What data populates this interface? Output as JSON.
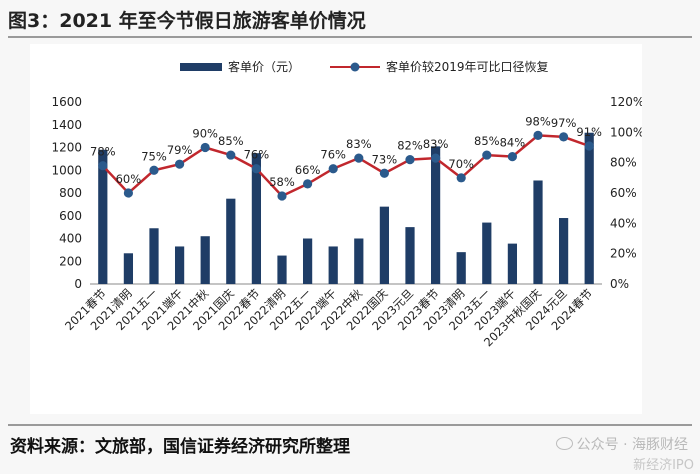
{
  "title": "图3：2021 年至今节假日旅游客单价情况",
  "source": "资料来源：文旅部，国信证券经济研究所整理",
  "watermark": "公众号 · 海豚财经",
  "watermark2": "新经济IPO",
  "colors": {
    "bar": "#1f3d66",
    "line": "#c1272d",
    "marker": "#2b5a8c",
    "axis": "#555555",
    "grid": "#dddddd"
  },
  "chart_data": {
    "type": "bar+line",
    "legend": [
      "客单价（元）",
      "客单价较2019年可比口径恢复"
    ],
    "categories": [
      "2021春节",
      "2021清明",
      "2021五一",
      "2021端午",
      "2021中秋",
      "2021国庆",
      "2022春节",
      "2022清明",
      "2022五一",
      "2022端午",
      "2022中秋",
      "2022国庆",
      "2023元旦",
      "2023春节",
      "2023清明",
      "2023五一",
      "2023端午",
      "2023中秋国庆",
      "2024元旦",
      "2024春节"
    ],
    "series": [
      {
        "name": "客单价（元）",
        "axis": "left",
        "type": "bar",
        "values": [
          1180,
          270,
          490,
          330,
          420,
          750,
          1150,
          250,
          400,
          330,
          400,
          680,
          500,
          1210,
          280,
          540,
          355,
          910,
          580,
          1330
        ]
      },
      {
        "name": "客单价较2019年可比口径恢复",
        "axis": "right",
        "type": "line",
        "values": [
          78,
          60,
          75,
          79,
          90,
          85,
          76,
          58,
          66,
          76,
          83,
          73,
          82,
          83,
          70,
          85,
          84,
          98,
          97,
          91
        ],
        "labels": [
          "78%",
          "60%",
          "75%",
          "79%",
          "90%",
          "85%",
          "76%",
          "58%",
          "66%",
          "76%",
          "83%",
          "73%",
          "82%",
          "83%",
          "70%",
          "85%",
          "84%",
          "98%",
          "97%",
          "91%"
        ]
      }
    ],
    "y_left": {
      "min": 0,
      "max": 1600,
      "step": 200,
      "ticks": [
        "0",
        "200",
        "400",
        "600",
        "800",
        "1000",
        "1200",
        "1400",
        "1600"
      ]
    },
    "y_right": {
      "min": 0,
      "max": 120,
      "step": 20,
      "ticks": [
        "0%",
        "20%",
        "40%",
        "60%",
        "80%",
        "100%",
        "120%"
      ]
    }
  }
}
